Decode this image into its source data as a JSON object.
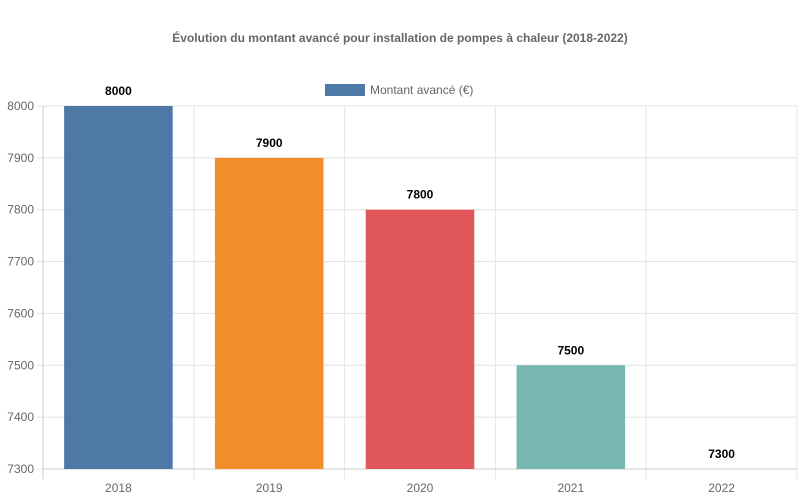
{
  "chart_data": {
    "type": "bar",
    "title": "Évolution du montant avancé pour installation de pompes à chaleur (2018-2022)",
    "categories": [
      "2018",
      "2019",
      "2020",
      "2021",
      "2022"
    ],
    "series": [
      {
        "name": "Montant avancé (€)",
        "values": [
          8000,
          7900,
          7800,
          7500,
          7300
        ]
      }
    ],
    "colors": [
      "#4e79a7",
      "#f28e2b",
      "#e15759",
      "#76b7b2",
      "#59a14f"
    ],
    "legend_color": "#4e79a7",
    "xlabel": "",
    "ylabel": "",
    "ylim": [
      7300,
      8000
    ],
    "yticks": [
      7300,
      7400,
      7500,
      7600,
      7700,
      7800,
      7900,
      8000
    ],
    "grid": true,
    "legend_position": "top-center",
    "data_labels": true
  }
}
